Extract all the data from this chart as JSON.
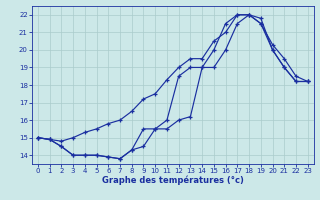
{
  "xlabel": "Graphe des températures (°c)",
  "bg_color": "#cce8e8",
  "grid_color": "#aacccc",
  "line_color": "#1a2fa0",
  "xlim": [
    -0.5,
    23.5
  ],
  "ylim": [
    13.5,
    22.5
  ],
  "xticks": [
    0,
    1,
    2,
    3,
    4,
    5,
    6,
    7,
    8,
    9,
    10,
    11,
    12,
    13,
    14,
    15,
    16,
    17,
    18,
    19,
    20,
    21,
    22,
    23
  ],
  "yticks": [
    14,
    15,
    16,
    17,
    18,
    19,
    20,
    21,
    22
  ],
  "series1_x": [
    0,
    1,
    2,
    3,
    4,
    5,
    6,
    7,
    8,
    9,
    10,
    11,
    12,
    13,
    14,
    15,
    16,
    17,
    18,
    19,
    20,
    21,
    22,
    23
  ],
  "series1_y": [
    15.0,
    14.9,
    14.5,
    14.0,
    14.0,
    14.0,
    13.9,
    13.8,
    14.3,
    14.5,
    15.5,
    15.5,
    16.0,
    16.2,
    19.0,
    19.0,
    20.0,
    21.5,
    22.0,
    21.8,
    20.0,
    19.0,
    18.2,
    18.2
  ],
  "series2_x": [
    0,
    1,
    2,
    3,
    4,
    5,
    6,
    7,
    8,
    9,
    10,
    11,
    12,
    13,
    14,
    15,
    16,
    17,
    18,
    19,
    20,
    21,
    22,
    23
  ],
  "series2_y": [
    15.0,
    14.9,
    14.8,
    15.0,
    15.3,
    15.5,
    15.8,
    16.0,
    16.5,
    17.2,
    17.5,
    18.3,
    19.0,
    19.5,
    19.5,
    20.5,
    21.0,
    22.0,
    22.0,
    21.5,
    20.3,
    19.5,
    18.5,
    18.2
  ],
  "series3_x": [
    0,
    1,
    2,
    3,
    4,
    5,
    6,
    7,
    8,
    9,
    10,
    11,
    12,
    13,
    14,
    15,
    16,
    17,
    18,
    19,
    20,
    21,
    22,
    23
  ],
  "series3_y": [
    15.0,
    14.9,
    14.5,
    14.0,
    14.0,
    14.0,
    13.9,
    13.8,
    14.3,
    15.5,
    15.5,
    16.0,
    18.5,
    19.0,
    19.0,
    20.0,
    21.5,
    22.0,
    22.0,
    21.5,
    20.0,
    19.0,
    18.2,
    18.2
  ]
}
